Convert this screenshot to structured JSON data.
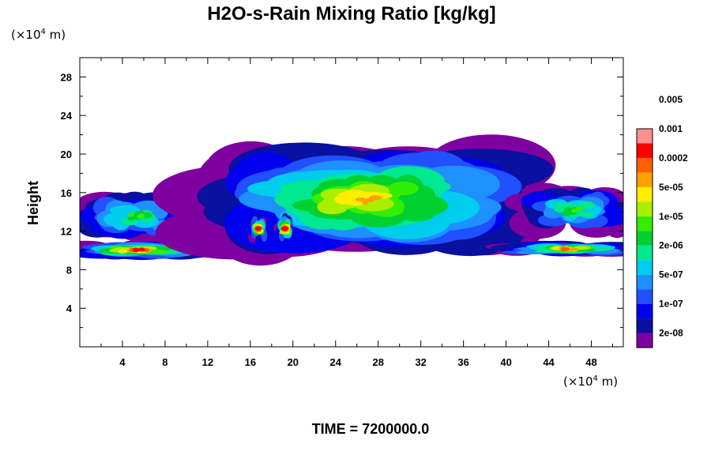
{
  "chart_data": {
    "type": "heatmap",
    "title": "H2O-s-Rain Mixing Ratio [kg/kg]",
    "ylabel": "Height",
    "unit_prefix": "(×10",
    "unit_exp": "4",
    "unit_suffix": " m)",
    "time_label": "TIME = 7200000.0",
    "xlim": [
      0,
      51
    ],
    "ylim": [
      0,
      30
    ],
    "x_ticks": [
      4,
      8,
      12,
      16,
      20,
      24,
      28,
      32,
      36,
      40,
      44,
      48
    ],
    "y_ticks": [
      4,
      8,
      12,
      16,
      20,
      24,
      28
    ],
    "colorbar": {
      "colors": [
        "#7f00a0",
        "#0a10a0",
        "#0000ee",
        "#2050ff",
        "#1e90ff",
        "#00ccee",
        "#00e890",
        "#00d030",
        "#33ee00",
        "#aaee00",
        "#ffee00",
        "#ffa000",
        "#ff6000",
        "#ff0000",
        "#ff9090"
      ],
      "labels": [
        "2e-08",
        "1e-07",
        "5e-07",
        "2e-06",
        "1e-05",
        "5e-05",
        "0.0002",
        "0.001",
        "0.005"
      ]
    },
    "regions": [
      {
        "name": "upper-left cloud",
        "x": [
          0,
          10.5
        ],
        "y": [
          11.3,
          15.7
        ],
        "core_level": 8
      },
      {
        "name": "lower-left rain band",
        "x": [
          0,
          11
        ],
        "y": [
          9.3,
          10.8
        ],
        "core_level": 13
      },
      {
        "name": "central cloud",
        "x": [
          13.5,
          40
        ],
        "y": [
          10.8,
          19.8
        ],
        "core_level": 11
      },
      {
        "name": "convective core 1",
        "x": [
          16,
          17.5
        ],
        "y": [
          11,
          13.5
        ],
        "core_level": 13
      },
      {
        "name": "convective core 2",
        "x": [
          18.5,
          20
        ],
        "y": [
          11,
          13.5
        ],
        "core_level": 13
      },
      {
        "name": "right cloud",
        "x": [
          42,
          51
        ],
        "y": [
          12,
          16.3
        ],
        "core_level": 8
      },
      {
        "name": "lower-right rain band",
        "x": [
          40.5,
          51
        ],
        "y": [
          9.5,
          10.8
        ],
        "core_level": 12
      }
    ]
  }
}
